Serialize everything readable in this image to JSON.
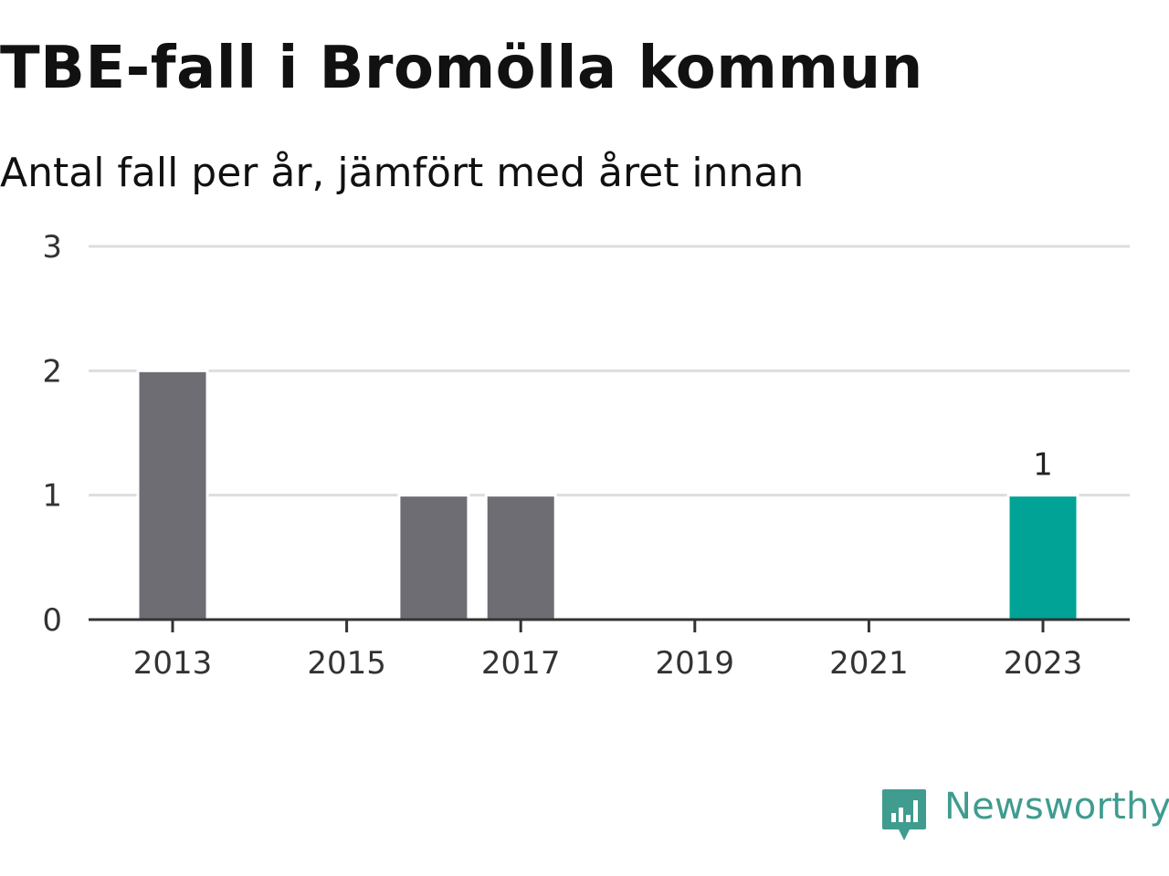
{
  "header": {
    "title": "TBE-fall i Bromölla kommun",
    "subtitle": "Antal fall per år, jämfört med året innan"
  },
  "brand": {
    "name": "Newsworthy",
    "icon": "newsworthy-logo-icon",
    "color": "#3f9c8f"
  },
  "colors": {
    "bar_default": "#6e6d73",
    "bar_highlight": "#00a396",
    "grid": "#dddddd",
    "axis": "#333333"
  },
  "chart_data": {
    "type": "bar",
    "title": "TBE-fall i Bromölla kommun",
    "subtitle": "Antal fall per år, jämfört med året innan",
    "xlabel": "",
    "ylabel": "",
    "categories": [
      "2013",
      "2014",
      "2015",
      "2016",
      "2017",
      "2018",
      "2019",
      "2020",
      "2021",
      "2022",
      "2023"
    ],
    "values": [
      2,
      0,
      0,
      1,
      1,
      0,
      0,
      0,
      0,
      0,
      1
    ],
    "highlight_category": "2023",
    "ylim": [
      0,
      3
    ],
    "yticks": [
      "0",
      "1",
      "2",
      "3"
    ],
    "xticks": [
      "2013",
      "2015",
      "2017",
      "2019",
      "2021",
      "2023"
    ],
    "data_labels": [
      {
        "category": "2023",
        "text": "1"
      }
    ],
    "grid": true,
    "legend": "none"
  }
}
